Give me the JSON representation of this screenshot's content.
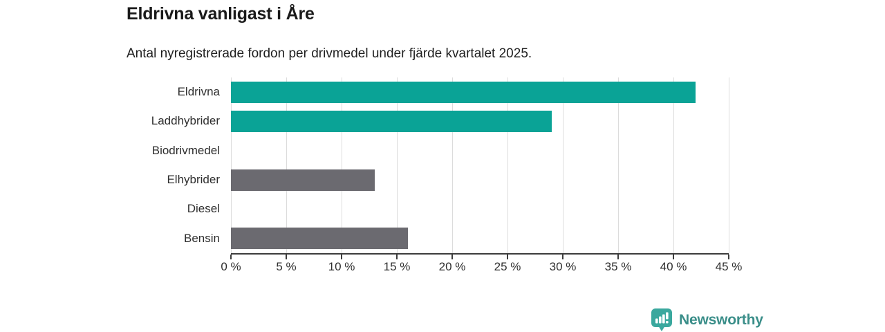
{
  "chart_data": {
    "type": "bar",
    "orientation": "horizontal",
    "title": "Eldrivna vanligast i Åre",
    "subtitle": "Antal nyregistrerade fordon per drivmedel under fjärde kvartalet 2025.",
    "categories": [
      "Eldrivna",
      "Laddhybrider",
      "Biodrivmedel",
      "Elhybrider",
      "Diesel",
      "Bensin"
    ],
    "values": [
      42,
      29,
      0,
      13,
      0,
      16
    ],
    "unit": "%",
    "bar_colors": [
      "#0aa396",
      "#0aa396",
      "#6b6a70",
      "#6b6a70",
      "#6b6a70",
      "#6b6a70"
    ],
    "highlight_color": "#0aa396",
    "muted_color": "#6b6a70",
    "xlim": [
      0,
      45
    ],
    "x_ticks": [
      {
        "value": 0,
        "label": "0 %"
      },
      {
        "value": 5,
        "label": "5 %"
      },
      {
        "value": 10,
        "label": "10 %"
      },
      {
        "value": 15,
        "label": "15 %"
      },
      {
        "value": 20,
        "label": "20 %"
      },
      {
        "value": 25,
        "label": "25 %"
      },
      {
        "value": 30,
        "label": "30 %"
      },
      {
        "value": 35,
        "label": "35 %"
      },
      {
        "value": 40,
        "label": "40 %"
      },
      {
        "value": 45,
        "label": "45 %"
      }
    ],
    "grid": true,
    "gridline_color": "#dcdcdc",
    "axis_color": "#3c3c3c",
    "text_color": "#2e2e2e",
    "legend": "none"
  },
  "footer": {
    "brand": "Newsworthy",
    "brand_color": "#3a8e89",
    "icon": "newsworthy-bar-chart-pin-icon",
    "icon_color": "#3aa89e"
  }
}
